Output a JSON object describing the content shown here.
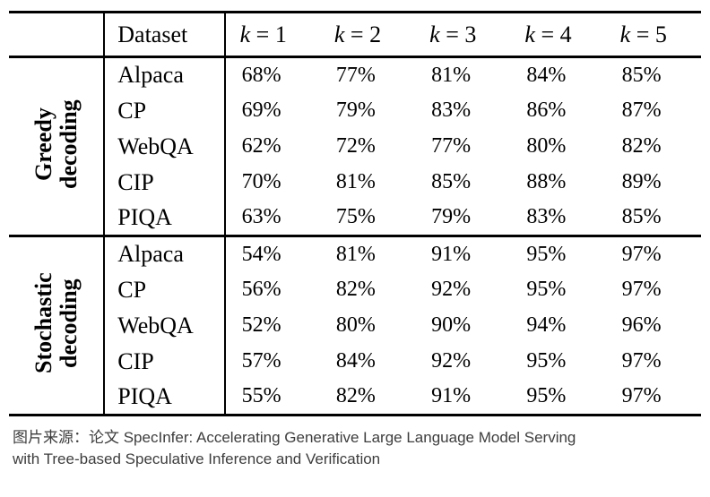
{
  "table": {
    "header": {
      "dataset_label": "Dataset",
      "k_symbol": "k",
      "k_columns": [
        {
          "symbol": "k",
          "rest": "= 1"
        },
        {
          "symbol": "k",
          "rest": "= 2"
        },
        {
          "symbol": "k",
          "rest": "= 3"
        },
        {
          "symbol": "k",
          "rest": "= 4"
        },
        {
          "symbol": "k",
          "rest": "= 5"
        }
      ]
    },
    "groups": [
      {
        "label": "Greedy decoding",
        "rows": [
          {
            "dataset": "Alpaca",
            "values": [
              "68%",
              "77%",
              "81%",
              "84%",
              "85%"
            ]
          },
          {
            "dataset": "CP",
            "values": [
              "69%",
              "79%",
              "83%",
              "86%",
              "87%"
            ]
          },
          {
            "dataset": "WebQA",
            "values": [
              "62%",
              "72%",
              "77%",
              "80%",
              "82%"
            ]
          },
          {
            "dataset": "CIP",
            "values": [
              "70%",
              "81%",
              "85%",
              "88%",
              "89%"
            ]
          },
          {
            "dataset": "PIQA",
            "values": [
              "63%",
              "75%",
              "79%",
              "83%",
              "85%"
            ]
          }
        ]
      },
      {
        "label": "Stochastic decoding",
        "rows": [
          {
            "dataset": "Alpaca",
            "values": [
              "54%",
              "81%",
              "91%",
              "95%",
              "97%"
            ]
          },
          {
            "dataset": "CP",
            "values": [
              "56%",
              "82%",
              "92%",
              "95%",
              "97%"
            ]
          },
          {
            "dataset": "WebQA",
            "values": [
              "52%",
              "80%",
              "90%",
              "94%",
              "96%"
            ]
          },
          {
            "dataset": "CIP",
            "values": [
              "57%",
              "84%",
              "92%",
              "95%",
              "97%"
            ]
          },
          {
            "dataset": "PIQA",
            "values": [
              "55%",
              "82%",
              "91%",
              "95%",
              "97%"
            ]
          }
        ]
      }
    ]
  },
  "caption": {
    "lines": [
      "图片来源：论文 SpecInfer: Accelerating Generative Large Language Model Serving",
      "with Tree-based Speculative Inference and Verification"
    ]
  }
}
